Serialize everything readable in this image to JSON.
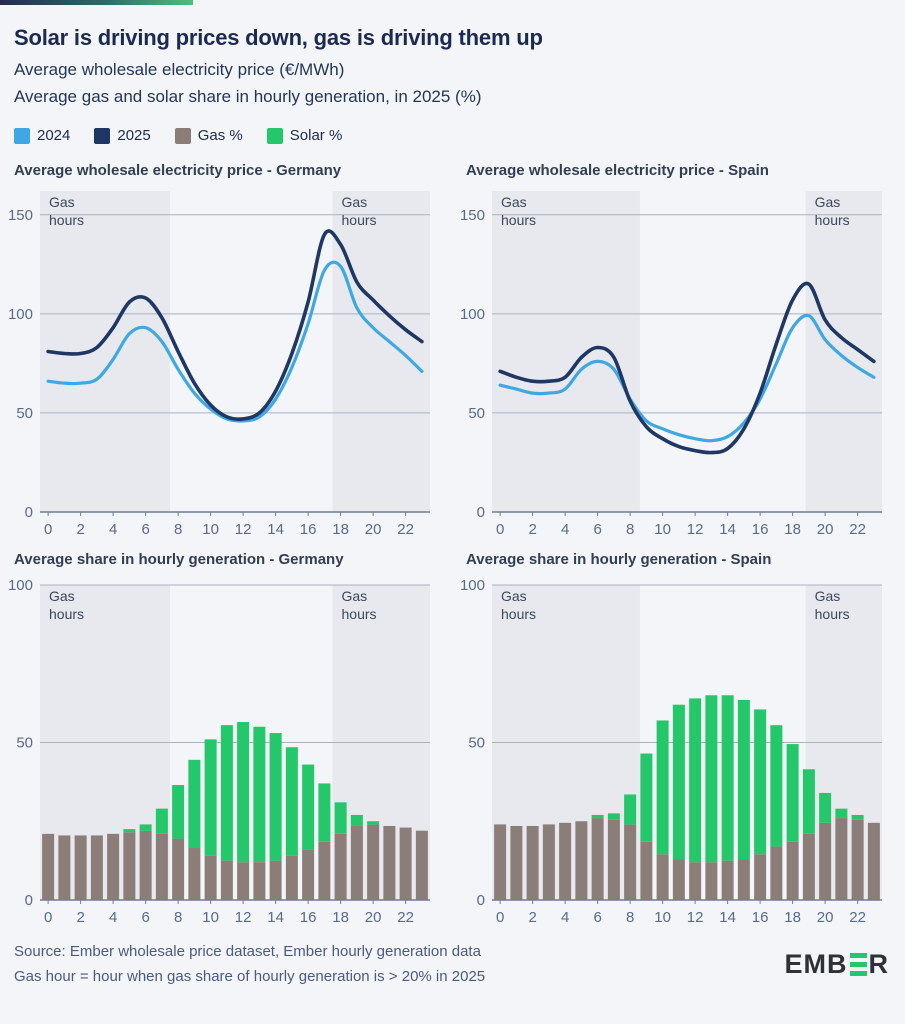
{
  "header": {
    "title": "Solar is driving prices down, gas is driving them up",
    "subtitle1": "Average wholesale electricity price (€/MWh)",
    "subtitle2": "Average gas and solar share in hourly generation, in 2025 (%)"
  },
  "legend": [
    {
      "label": "2024",
      "color": "#3fa8e4"
    },
    {
      "label": "2025",
      "color": "#1e3765"
    },
    {
      "label": "Gas %",
      "color": "#8b7d78"
    },
    {
      "label": "Solar %",
      "color": "#24c76a"
    }
  ],
  "gas_hours_label": [
    "Gas",
    "hours"
  ],
  "chart_data": [
    {
      "id": "price-germany",
      "type": "line",
      "title": "Average wholesale electricity price - Germany",
      "x": [
        0,
        1,
        2,
        3,
        4,
        5,
        6,
        7,
        8,
        9,
        10,
        11,
        12,
        13,
        14,
        15,
        16,
        17,
        18,
        19,
        20,
        21,
        22,
        23
      ],
      "xticks": [
        0,
        2,
        4,
        6,
        8,
        10,
        12,
        14,
        16,
        18,
        20,
        22
      ],
      "yticks": [
        0,
        50,
        100,
        150
      ],
      "ylim": [
        0,
        162
      ],
      "grid": true,
      "gas_hours": [
        [
          0,
          7.5
        ],
        [
          17.5,
          23
        ]
      ],
      "series": [
        {
          "name": "2024",
          "values": [
            66,
            65,
            65,
            67,
            77,
            90,
            93,
            86,
            72,
            60,
            52,
            47,
            46,
            48,
            57,
            73,
            95,
            122,
            124,
            103,
            93,
            86,
            79,
            71
          ]
        },
        {
          "name": "2025",
          "values": [
            81,
            80,
            80,
            83,
            93,
            106,
            108,
            98,
            81,
            65,
            54,
            48,
            47,
            50,
            61,
            80,
            106,
            140,
            135,
            116,
            107,
            99,
            92,
            86
          ]
        }
      ]
    },
    {
      "id": "price-spain",
      "type": "line",
      "title": "Average wholesale electricity price - Spain",
      "x": [
        0,
        1,
        2,
        3,
        4,
        5,
        6,
        7,
        8,
        9,
        10,
        11,
        12,
        13,
        14,
        15,
        16,
        17,
        18,
        19,
        20,
        21,
        22,
        23
      ],
      "xticks": [
        0,
        2,
        4,
        6,
        8,
        10,
        12,
        14,
        16,
        18,
        20,
        22
      ],
      "yticks": [
        0,
        50,
        100,
        150
      ],
      "ylim": [
        0,
        162
      ],
      "grid": true,
      "gas_hours": [
        [
          0,
          8.6
        ],
        [
          18.8,
          23
        ]
      ],
      "series": [
        {
          "name": "2024",
          "values": [
            64,
            62,
            60,
            60,
            62,
            72,
            76,
            72,
            57,
            46,
            42,
            39,
            37,
            36,
            38,
            45,
            57,
            75,
            93,
            99,
            87,
            79,
            73,
            68
          ]
        },
        {
          "name": "2025",
          "values": [
            71,
            68,
            66,
            66,
            68,
            78,
            83,
            78,
            56,
            43,
            37,
            33,
            31,
            30,
            32,
            42,
            60,
            85,
            107,
            115,
            97,
            88,
            82,
            76
          ]
        }
      ]
    },
    {
      "id": "share-germany",
      "type": "bar",
      "title": "Average share in hourly generation - Germany",
      "x": [
        0,
        1,
        2,
        3,
        4,
        5,
        6,
        7,
        8,
        9,
        10,
        11,
        12,
        13,
        14,
        15,
        16,
        17,
        18,
        19,
        20,
        21,
        22,
        23
      ],
      "xticks": [
        0,
        2,
        4,
        6,
        8,
        10,
        12,
        14,
        16,
        18,
        20,
        22
      ],
      "yticks": [
        0,
        50,
        100
      ],
      "ylim": [
        0,
        100
      ],
      "grid": true,
      "gas_hours": [
        [
          0,
          7.5
        ],
        [
          17.5,
          23
        ]
      ],
      "series": [
        {
          "name": "Gas %",
          "values": [
            21,
            20.5,
            20.5,
            20.5,
            21,
            21.5,
            22,
            21,
            19.5,
            16.5,
            14,
            12.5,
            12,
            12,
            12.5,
            14,
            16,
            18.5,
            21,
            23.5,
            24,
            23.5,
            23,
            22
          ]
        },
        {
          "name": "Solar %",
          "values": [
            0,
            0,
            0,
            0,
            0,
            1,
            2,
            8,
            17,
            28,
            37,
            43,
            44.5,
            43,
            40.5,
            34.5,
            27,
            18.5,
            10,
            3.5,
            1,
            0,
            0,
            0
          ]
        }
      ]
    },
    {
      "id": "share-spain",
      "type": "bar",
      "title": "Average share in hourly generation - Spain",
      "x": [
        0,
        1,
        2,
        3,
        4,
        5,
        6,
        7,
        8,
        9,
        10,
        11,
        12,
        13,
        14,
        15,
        16,
        17,
        18,
        19,
        20,
        21,
        22,
        23
      ],
      "xticks": [
        0,
        2,
        4,
        6,
        8,
        10,
        12,
        14,
        16,
        18,
        20,
        22
      ],
      "yticks": [
        0,
        50,
        100
      ],
      "ylim": [
        0,
        100
      ],
      "grid": true,
      "gas_hours": [
        [
          0,
          8.6
        ],
        [
          18.8,
          23
        ]
      ],
      "series": [
        {
          "name": "Gas %",
          "values": [
            24,
            23.5,
            23.5,
            24,
            24.5,
            25,
            26,
            25.5,
            24,
            18.5,
            14.5,
            13,
            12,
            12,
            12.5,
            13,
            14.5,
            17,
            18.5,
            21,
            24.5,
            26,
            25.5,
            24.5
          ]
        },
        {
          "name": "Solar %",
          "values": [
            0,
            0,
            0,
            0,
            0,
            0,
            1,
            2,
            9.5,
            28,
            42.5,
            49,
            52,
            53,
            52.5,
            50.5,
            46,
            38.5,
            31,
            20.5,
            9.5,
            3,
            1.5,
            0
          ]
        }
      ]
    }
  ],
  "footer": {
    "source": "Source: Ember wholesale price dataset, Ember hourly generation data",
    "note": "Gas hour = hour when gas share of hourly generation is > 20% in 2025",
    "logo_prefix": "EMB",
    "logo_suffix": "R"
  }
}
